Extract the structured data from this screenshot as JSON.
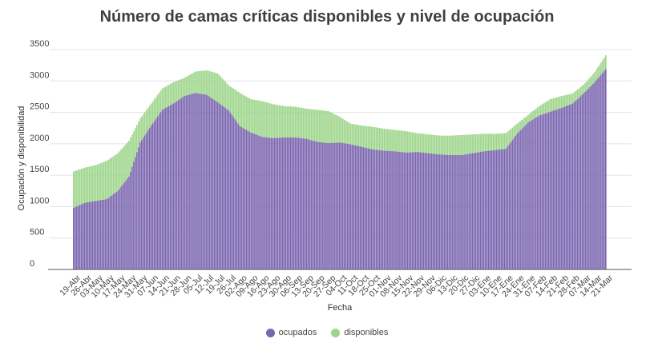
{
  "chart_data": {
    "type": "bar",
    "stacked": true,
    "title": "Número de camas críticas disponibles y nivel de ocupación",
    "xlabel": "Fecha",
    "ylabel": "Ocupación y disponibilidad",
    "ylim": [
      0,
      3500
    ],
    "yticks": [
      0,
      500,
      1000,
      1500,
      2000,
      2500,
      3000,
      3500
    ],
    "grid": true,
    "legend_position": "bottom",
    "tick_labels": [
      "19-Abr",
      "26-Abr",
      "03-May",
      "10-May",
      "17-May",
      "24-May",
      "31-May",
      "07-Jun",
      "14-Jun",
      "21-Jun",
      "28-Jun",
      "05-Jul",
      "12-Jul",
      "19-Jul",
      "26-Jul",
      "02-Ago",
      "09-Ago",
      "16-Ago",
      "23-Ago",
      "30-Ago",
      "06-Sep",
      "13-Sep",
      "20-Sep",
      "27-Sep",
      "04-Oct",
      "11-Oct",
      "18-Oct",
      "25-Oct",
      "01-Nov",
      "08-Nov",
      "15-Nov",
      "22-Nov",
      "29-Nov",
      "06-Dic",
      "13-Dic",
      "20-Dic",
      "27-Dic",
      "03-Ene",
      "10-Ene",
      "17-Ene",
      "24-Ene",
      "31-Ene",
      "07-Feb",
      "14-Feb",
      "21-Feb",
      "28-Feb",
      "07-Mar",
      "14-Mar",
      "21-Mar"
    ],
    "series": [
      {
        "name": "ocupados",
        "color": "#7b66b0",
        "weekly_values": [
          980,
          1060,
          1090,
          1120,
          1250,
          1480,
          2020,
          2290,
          2540,
          2640,
          2760,
          2810,
          2780,
          2660,
          2530,
          2280,
          2180,
          2110,
          2090,
          2100,
          2100,
          2080,
          2030,
          2010,
          2020,
          1990,
          1950,
          1910,
          1890,
          1880,
          1860,
          1870,
          1850,
          1830,
          1820,
          1820,
          1850,
          1880,
          1900,
          1920,
          2160,
          2340,
          2450,
          2510,
          2570,
          2640,
          2800,
          2980,
          3190
        ]
      },
      {
        "name": "disponibles",
        "color": "#9ed58b",
        "weekly_values": [
          1560,
          1620,
          1660,
          1730,
          1850,
          2050,
          2400,
          2640,
          2880,
          2980,
          3050,
          3150,
          3170,
          3120,
          2930,
          2810,
          2710,
          2680,
          2630,
          2600,
          2590,
          2560,
          2540,
          2520,
          2430,
          2320,
          2290,
          2270,
          2240,
          2220,
          2200,
          2170,
          2150,
          2130,
          2130,
          2140,
          2150,
          2160,
          2160,
          2170,
          2320,
          2460,
          2600,
          2710,
          2760,
          2800,
          2940,
          3140,
          3410
        ]
      }
    ]
  }
}
